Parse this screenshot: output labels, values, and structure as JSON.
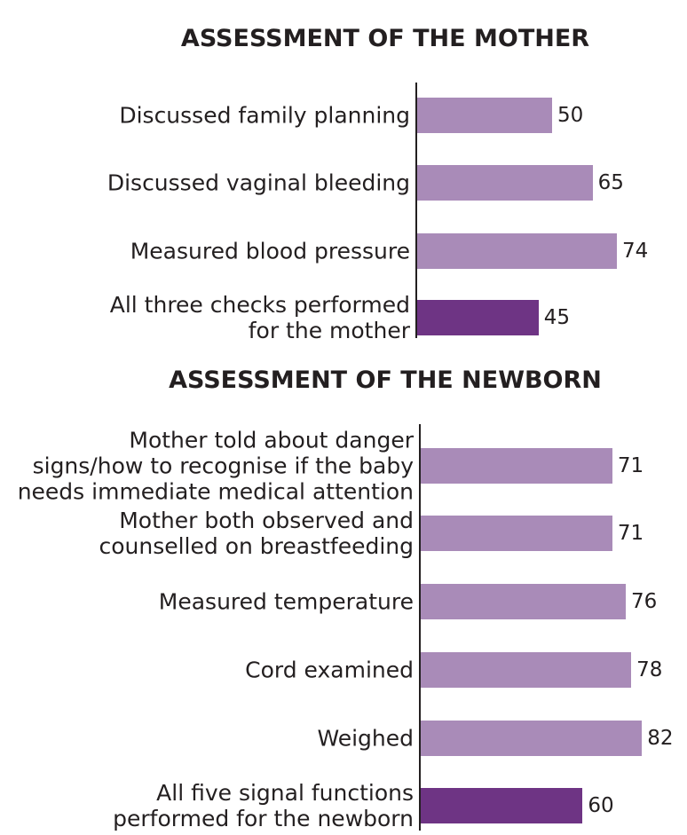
{
  "chart_data": [
    {
      "type": "bar",
      "orientation": "horizontal",
      "title": "ASSESSMENT OF THE MOTHER",
      "categories": [
        "Discussed family planning",
        "Discussed vaginal bleeding",
        "Measured blood pressure",
        "All three checks performed\nfor the mother"
      ],
      "values": [
        50,
        65,
        74,
        45
      ],
      "colors": [
        "#a98bb8",
        "#a98bb8",
        "#a98bb8",
        "#6e3484"
      ],
      "xlim": [
        0,
        100
      ]
    },
    {
      "type": "bar",
      "orientation": "horizontal",
      "title": "ASSESSMENT OF THE NEWBORN",
      "categories": [
        "Mother told about danger\nsigns/how to recognise if the baby\nneeds immediate medical attention",
        "Mother both observed and\ncounselled on breastfeeding",
        "Measured temperature",
        "Cord examined",
        "Weighed",
        "All five signal functions\nperformed for the newborn"
      ],
      "values": [
        71,
        71,
        76,
        78,
        82,
        60
      ],
      "colors": [
        "#a98bb8",
        "#a98bb8",
        "#a98bb8",
        "#a98bb8",
        "#a98bb8",
        "#6e3484"
      ],
      "xlim": [
        0,
        100
      ]
    }
  ]
}
